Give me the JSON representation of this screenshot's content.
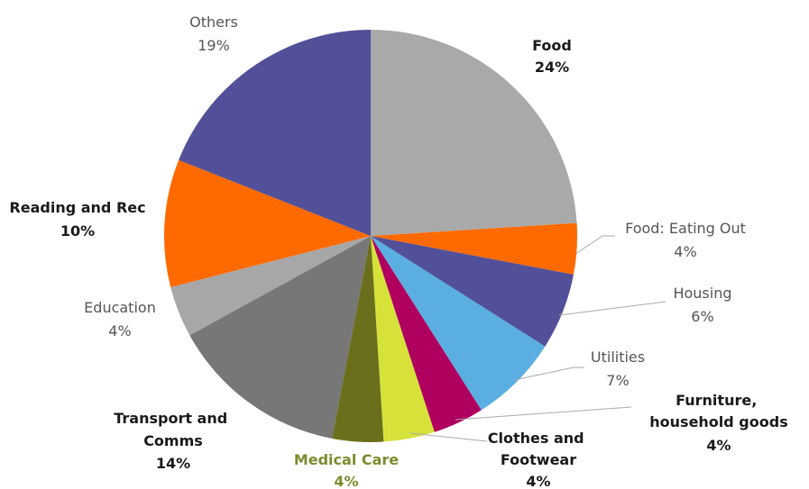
{
  "chart_data": {
    "type": "pie",
    "start_angle_deg": 0,
    "direction": "clockwise",
    "slices": [
      {
        "id": "food",
        "name": "Food",
        "value": 24,
        "label": "24%",
        "color": "#a9a9a9",
        "bold": true
      },
      {
        "id": "food-eating-out",
        "name": "Food: Eating Out",
        "value": 4,
        "label": "4%",
        "color": "#ff6a00",
        "bold": false
      },
      {
        "id": "housing",
        "name": "Housing",
        "value": 6,
        "label": "6%",
        "color": "#525099",
        "bold": false
      },
      {
        "id": "utilities",
        "name": "Utilities",
        "value": 7,
        "label": "7%",
        "color": "#5aaee2",
        "bold": false
      },
      {
        "id": "furniture",
        "name": "Furniture, household goods",
        "value": 4,
        "label": "4%",
        "color": "#b0005f",
        "bold": true
      },
      {
        "id": "clothes",
        "name": "Clothes and Footwear",
        "value": 4,
        "label": "4%",
        "color": "#d6e23a",
        "bold": true
      },
      {
        "id": "medical",
        "name": "Medical Care",
        "value": 4,
        "label": "4%",
        "color": "#6b6f1c",
        "bold": true
      },
      {
        "id": "transport",
        "name": "Transport and Comms",
        "value": 14,
        "label": "14%",
        "color": "#777777",
        "bold": true
      },
      {
        "id": "education",
        "name": "Education",
        "value": 4,
        "label": "4%",
        "color": "#a7a7a7",
        "bold": false
      },
      {
        "id": "reading",
        "name": "Reading and Rec",
        "value": 10,
        "label": "10%",
        "color": "#ff6a00",
        "bold": true
      },
      {
        "id": "others",
        "name": "Others",
        "value": 19,
        "label": "19%",
        "color": "#525099",
        "bold": false
      }
    ]
  }
}
